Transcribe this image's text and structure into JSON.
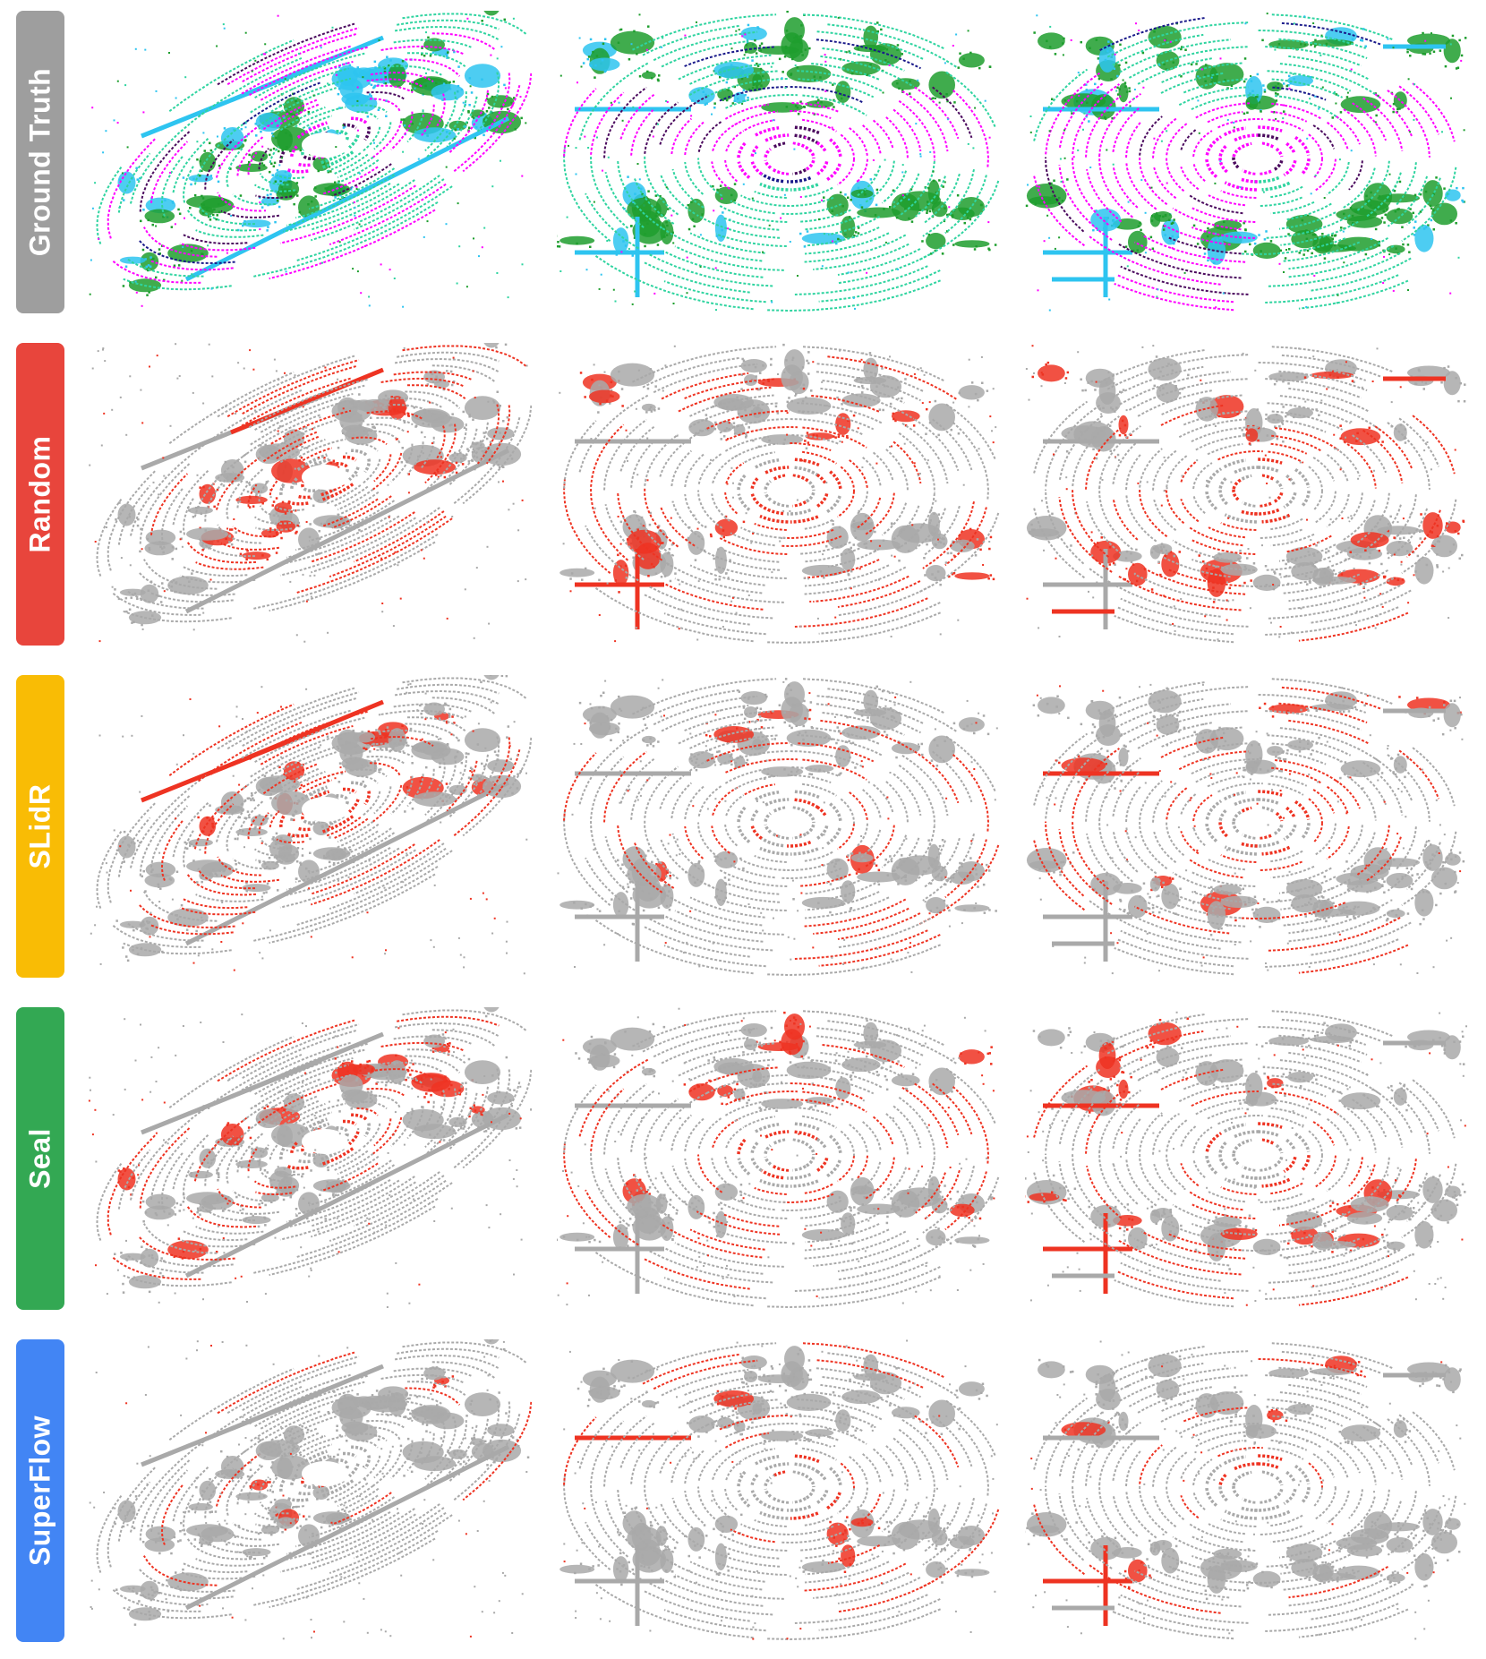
{
  "rows": [
    {
      "id": "ground-truth",
      "label": "Ground Truth",
      "label_color": "#9e9e9e",
      "kind": "semantic"
    },
    {
      "id": "random",
      "label": "Random",
      "label_color": "#e8453c",
      "kind": "error"
    },
    {
      "id": "slidr",
      "label": "SLidR",
      "label_color": "#f9bc05",
      "kind": "error"
    },
    {
      "id": "seal",
      "label": "Seal",
      "label_color": "#33a853",
      "kind": "error"
    },
    {
      "id": "superflow",
      "label": "SuperFlow",
      "label_color": "#4285f4",
      "kind": "error"
    }
  ],
  "columns": [
    {
      "id": "scene-1",
      "view": "oblique"
    },
    {
      "id": "scene-2",
      "view": "top-down"
    },
    {
      "id": "scene-3",
      "view": "top-down-junction"
    }
  ],
  "colors": {
    "correct_point": "#a9a9a9",
    "error_point": "#ee3322",
    "gt_road": "#ff00ff",
    "gt_vegetation": "#1e9e2e",
    "gt_terrain": "#2fd4a0",
    "gt_building": "#2ec4f0",
    "gt_car": "#1a1a8a",
    "gt_sidewalk": "#4b0a5e",
    "gt_other": "#f0a060"
  },
  "error_level": {
    "random": 0.3,
    "slidr": 0.25,
    "seal": 0.22,
    "superflow": 0.1
  }
}
